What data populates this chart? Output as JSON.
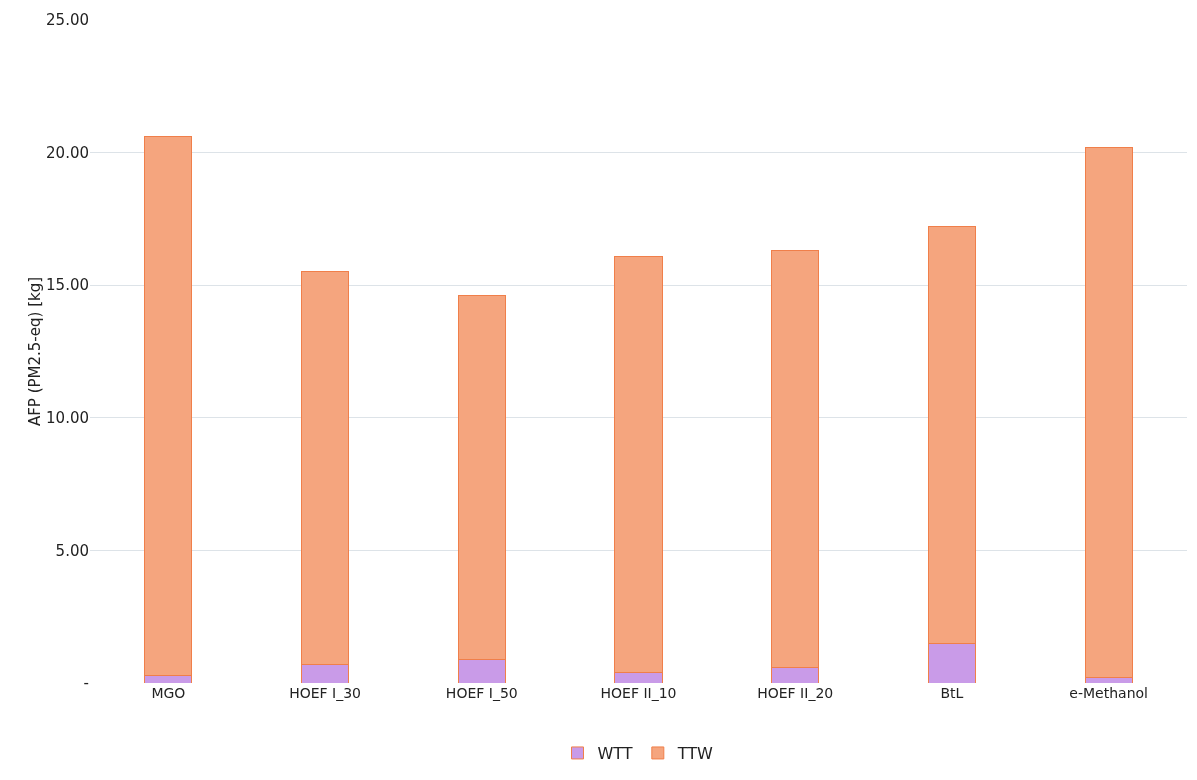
{
  "chart_data": {
    "type": "bar",
    "stacked": true,
    "ylabel": "AFP (PM2.5-eq) [kg]",
    "categories": [
      "MGO",
      "HOEF I_30",
      "HOEF I_50",
      "HOEF II_10",
      "HOEF II_20",
      "BtL",
      "e-Methanol"
    ],
    "series": [
      {
        "name": "WTT",
        "color": "#c99be8",
        "values": [
          0.3,
          0.7,
          0.9,
          0.4,
          0.6,
          1.5,
          0.2
        ]
      },
      {
        "name": "TTW",
        "color": "#f5a57e",
        "values": [
          20.3,
          14.8,
          13.7,
          15.7,
          15.7,
          15.7,
          20.0
        ]
      }
    ],
    "ylim": [
      0,
      25
    ],
    "yticks": [
      {
        "value": 0,
        "label": "-"
      },
      {
        "value": 5,
        "label": "5.00"
      },
      {
        "value": 10,
        "label": "10.00"
      },
      {
        "value": 15,
        "label": "15.00"
      },
      {
        "value": 20,
        "label": "20.00"
      },
      {
        "value": 25,
        "label": "25.00"
      }
    ],
    "grid": "y",
    "legend": "bottom"
  }
}
